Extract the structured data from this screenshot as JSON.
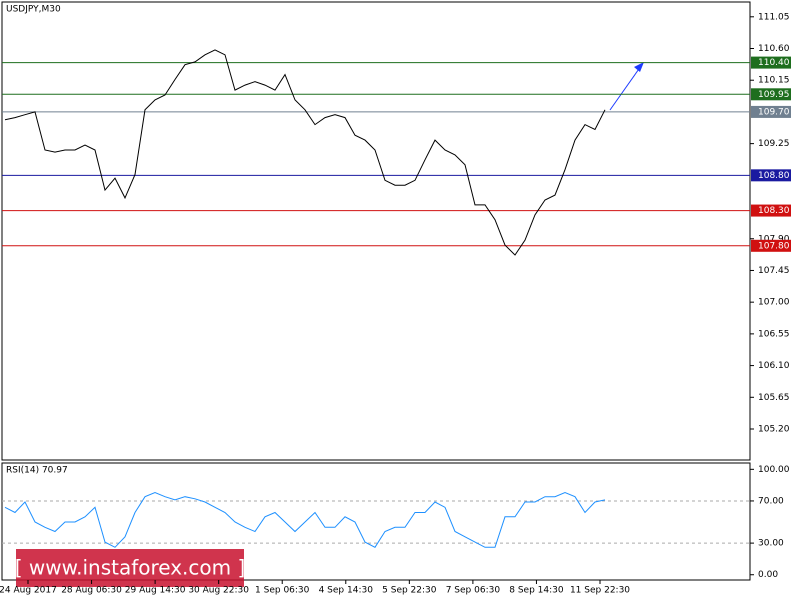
{
  "chart_data": [
    {
      "type": "line",
      "title": "USDJPY,M30",
      "x_labels": [
        "24 Aug 2017",
        "28 Aug 06:30",
        "29 Aug 14:30",
        "30 Aug 22:30",
        "1 Sep 06:30",
        "4 Sep 14:30",
        "5 Sep 22:30",
        "7 Sep 06:30",
        "8 Sep 14:30",
        "11 Sep 22:30"
      ],
      "series": [
        {
          "name": "USDJPY",
          "color": "#000000",
          "values": [
            109.59,
            109.62,
            109.66,
            109.7,
            109.16,
            109.13,
            109.16,
            109.16,
            109.23,
            109.16,
            108.59,
            108.76,
            108.48,
            108.81,
            109.73,
            109.87,
            109.94,
            110.16,
            110.37,
            110.41,
            110.51,
            110.58,
            110.51,
            110.01,
            110.08,
            110.13,
            110.08,
            110.01,
            110.23,
            109.87,
            109.73,
            109.52,
            109.62,
            109.66,
            109.62,
            109.37,
            109.3,
            109.16,
            108.73,
            108.66,
            108.66,
            108.73,
            109.02,
            109.3,
            109.16,
            109.09,
            108.95,
            108.38,
            108.38,
            108.17,
            107.81,
            107.67,
            107.88,
            108.24,
            108.45,
            108.52,
            108.88,
            109.3,
            109.52,
            109.45,
            109.73
          ]
        }
      ],
      "ylim": [
        104.76,
        111.26
      ],
      "yticks": [
        111.05,
        {
          "value": 110.6,
          "label": "110.60"
        },
        110.15,
        109.25,
        {
          "value": 107.9,
          "label": "107.90"
        },
        107.45,
        {
          "value": 107.0,
          "label": "107.00"
        },
        106.55,
        {
          "value": 106.1,
          "label": "106.10"
        },
        105.65,
        {
          "value": 105.2,
          "label": "105.20"
        }
      ],
      "levels": [
        {
          "value": 110.4,
          "label": "110.40",
          "color": "#1e6e1e"
        },
        {
          "value": 109.95,
          "label": "109.95",
          "color": "#1e6e1e"
        },
        {
          "value": 109.7,
          "label": "109.70",
          "color": "#708090"
        },
        {
          "value": 108.8,
          "label": "108.80",
          "color": "#1a1aa0"
        },
        {
          "value": 108.3,
          "label": "108.30",
          "color": "#d01010"
        },
        {
          "value": 107.8,
          "label": "107.80",
          "color": "#d01010"
        }
      ]
    },
    {
      "type": "line",
      "title": "RSI(14) 70.97",
      "series": [
        {
          "name": "RSI(14)",
          "color": "#1e90ff",
          "values": [
            64,
            59,
            69,
            50,
            45,
            41,
            50,
            50,
            55,
            64,
            31,
            26,
            36,
            59,
            74,
            78,
            74,
            71,
            74,
            72,
            69,
            64,
            59,
            50,
            45,
            41,
            55,
            59,
            50,
            41,
            50,
            59,
            45,
            45,
            55,
            50,
            31,
            26,
            41,
            45,
            45,
            59,
            59,
            69,
            64,
            41,
            36,
            31,
            26,
            26,
            55,
            55,
            69,
            69,
            74,
            74,
            78,
            74,
            59,
            69,
            71
          ]
        }
      ],
      "ylim": [
        -5,
        106
      ],
      "yticks": [
        {
          "value": 100,
          "label": "100.00"
        },
        {
          "value": 70,
          "label": "70.00"
        },
        {
          "value": 30,
          "label": "30.00"
        },
        {
          "value": 0,
          "label": "0.00"
        }
      ]
    },
    {
      "type": "watermark",
      "text": "[  www.instaforex.com ]"
    }
  ]
}
